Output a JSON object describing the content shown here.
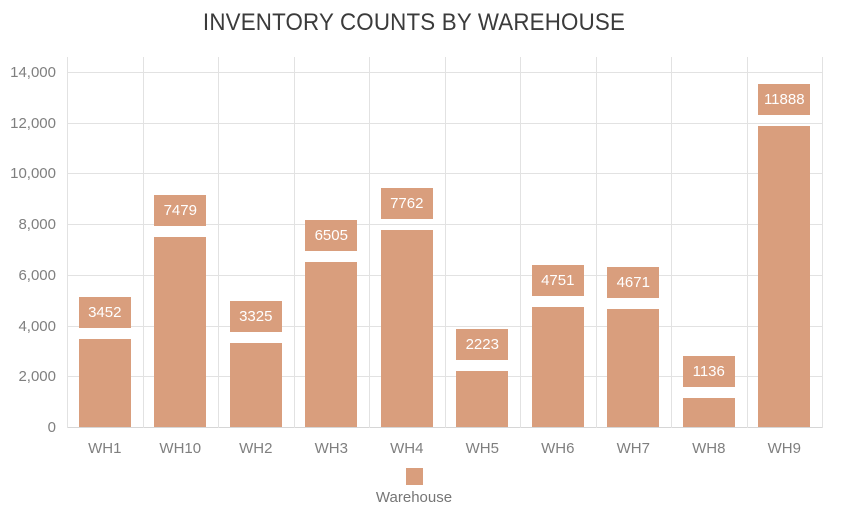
{
  "chart_data": {
    "type": "bar",
    "title": "INVENTORY COUNTS BY WAREHOUSE",
    "series_name": "Warehouse",
    "categories": [
      "WH1",
      "WH10",
      "WH2",
      "WH3",
      "WH4",
      "WH5",
      "WH6",
      "WH7",
      "WH8",
      "WH9"
    ],
    "values": [
      3452,
      7479,
      3325,
      6505,
      7762,
      2223,
      4751,
      4671,
      1136,
      11888
    ],
    "data_labels": [
      "3452",
      "7479",
      "3325",
      "6505",
      "7762",
      "2223",
      "4751",
      "4671",
      "1136",
      "11888"
    ],
    "xlabel": "",
    "ylabel": "",
    "ylim": [
      0,
      14000
    ],
    "ytick_step": 2000,
    "ytick_labels": [
      "0",
      "2,000",
      "4,000",
      "6,000",
      "8,000",
      "10,000",
      "12,000",
      "14,000"
    ],
    "grid": true,
    "vertical_gridlines": true,
    "legend_position": "bottom",
    "colors": {
      "bar": "#d99e7d",
      "data_label_text": "#ffffff",
      "gridline": "#e2e2e2",
      "axis_line": "#d6d6d6",
      "axis_text": "#7f7f7f",
      "title_text": "#3b3b3b"
    }
  }
}
